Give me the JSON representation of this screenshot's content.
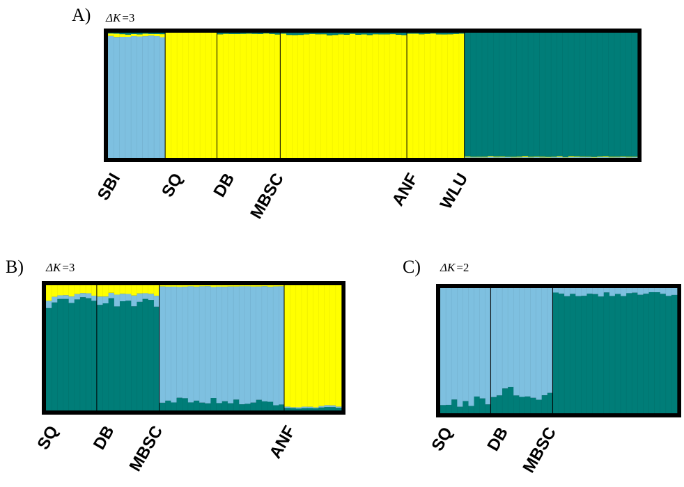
{
  "colors": {
    "cluster_yellow": "#ffff00",
    "cluster_lightblue": "#7ec0e0",
    "cluster_teal": "#007d78",
    "frame": "#000000",
    "separator": "#000000"
  },
  "chart_data": [
    {
      "type": "stacked-bar",
      "panel": "A)",
      "delta_k_symbol": "ΔK",
      "delta_k_value": "=3",
      "clusters": [
        "lightblue",
        "yellow",
        "teal"
      ],
      "ylim": [
        0,
        1
      ],
      "populations": [
        {
          "name": "SBI",
          "n": 10,
          "mean": {
            "lightblue": 0.97,
            "yellow": 0.02,
            "teal": 0.01
          }
        },
        {
          "name": "SQ",
          "n": 9,
          "mean": {
            "lightblue": 0.0,
            "yellow": 1.0,
            "teal": 0.0
          }
        },
        {
          "name": "DB",
          "n": 11,
          "mean": {
            "lightblue": 0.0,
            "yellow": 0.99,
            "teal": 0.01
          }
        },
        {
          "name": "MBSC",
          "n": 22,
          "mean": {
            "lightblue": 0.0,
            "yellow": 0.985,
            "teal": 0.015
          }
        },
        {
          "name": "ANF",
          "n": 10,
          "mean": {
            "lightblue": 0.0,
            "yellow": 0.99,
            "teal": 0.01
          }
        },
        {
          "name": "WLU",
          "n": 30,
          "mean": {
            "lightblue": 0.005,
            "yellow": 0.005,
            "teal": 0.99
          }
        }
      ]
    },
    {
      "type": "stacked-bar",
      "panel": "B)",
      "delta_k_symbol": "ΔK",
      "delta_k_value": "=3",
      "clusters": [
        "teal",
        "lightblue",
        "yellow"
      ],
      "ylim": [
        0,
        1
      ],
      "populations": [
        {
          "name": "SQ",
          "n": 9,
          "mean": {
            "teal": 0.87,
            "lightblue": 0.04,
            "yellow": 0.09
          }
        },
        {
          "name": "DB",
          "n": 11,
          "mean": {
            "teal": 0.86,
            "lightblue": 0.07,
            "yellow": 0.07
          }
        },
        {
          "name": "MBSC",
          "n": 22,
          "mean": {
            "teal": 0.07,
            "lightblue": 0.92,
            "yellow": 0.01
          }
        },
        {
          "name": "ANF",
          "n": 10,
          "mean": {
            "teal": 0.02,
            "lightblue": 0.01,
            "yellow": 0.97
          }
        }
      ]
    },
    {
      "type": "stacked-bar",
      "panel": "C)",
      "delta_k_symbol": "ΔK",
      "delta_k_value": "=2",
      "clusters": [
        "teal",
        "lightblue"
      ],
      "ylim": [
        0,
        1
      ],
      "populations": [
        {
          "name": "SQ",
          "n": 9,
          "mean": {
            "teal": 0.08,
            "lightblue": 0.92
          }
        },
        {
          "name": "DB",
          "n": 11,
          "mean": {
            "teal": 0.15,
            "lightblue": 0.85
          }
        },
        {
          "name": "MBSC",
          "n": 22,
          "mean": {
            "teal": 0.95,
            "lightblue": 0.05
          }
        }
      ]
    }
  ]
}
